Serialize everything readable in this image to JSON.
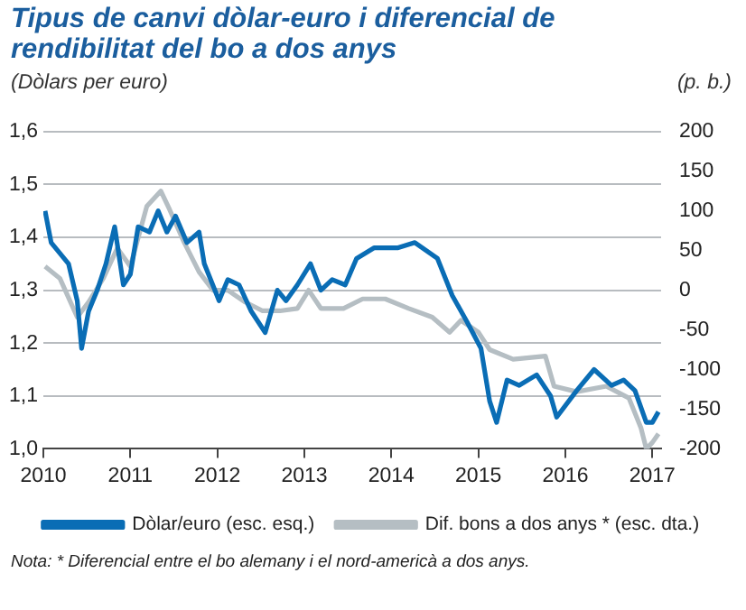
{
  "chart_data": {
    "type": "line",
    "title": "Tipus de canvi dòlar-euro i diferencial de rendibilitat del bo a dos anys",
    "ylabel": "(Dòlars per euro)",
    "y2label": "(p. b.)",
    "xlim": [
      2010,
      2017.1
    ],
    "xticks": [
      2010,
      2011,
      2012,
      2013,
      2014,
      2015,
      2016,
      2017
    ],
    "ylim": [
      1.0,
      1.6
    ],
    "yticks": [
      {
        "value": 1.0,
        "label": "1,0"
      },
      {
        "value": 1.1,
        "label": "1,1"
      },
      {
        "value": 1.2,
        "label": "1,2"
      },
      {
        "value": 1.3,
        "label": "1,3"
      },
      {
        "value": 1.4,
        "label": "1,4"
      },
      {
        "value": 1.5,
        "label": "1,5"
      },
      {
        "value": 1.6,
        "label": "1,6"
      }
    ],
    "y2lim": [
      -200,
      200
    ],
    "y2ticks": [
      -200,
      -150,
      -100,
      -50,
      0,
      50,
      100,
      150,
      200
    ],
    "grid": "y",
    "legend": "bottom",
    "marker": "none",
    "line_style": "solid",
    "series": [
      {
        "name": "Dòlar/euro (esc. esq.)",
        "color": "#0a6db5",
        "x": [
          2010.02,
          2010.09,
          2010.19,
          2010.29,
          2010.39,
          2010.44,
          2010.52,
          2010.62,
          2010.72,
          2010.82,
          2010.92,
          2011.0,
          2011.09,
          2011.22,
          2011.32,
          2011.42,
          2011.52,
          2011.65,
          2011.79,
          2011.85,
          2012.02,
          2012.12,
          2012.25,
          2012.39,
          2012.55,
          2012.69,
          2012.79,
          2012.92,
          2013.07,
          2013.19,
          2013.32,
          2013.47,
          2013.6,
          2013.8,
          2014.07,
          2014.27,
          2014.53,
          2014.7,
          2014.87,
          2015.03,
          2015.13,
          2015.21,
          2015.33,
          2015.47,
          2015.67,
          2015.83,
          2015.9,
          2016.13,
          2016.33,
          2016.53,
          2016.67,
          2016.8,
          2016.93,
          2017.0,
          2017.07
        ],
        "values": [
          1.45,
          1.39,
          1.37,
          1.35,
          1.28,
          1.19,
          1.26,
          1.3,
          1.35,
          1.42,
          1.31,
          1.33,
          1.42,
          1.41,
          1.45,
          1.41,
          1.44,
          1.39,
          1.41,
          1.35,
          1.28,
          1.32,
          1.31,
          1.26,
          1.22,
          1.3,
          1.28,
          1.31,
          1.35,
          1.3,
          1.32,
          1.31,
          1.36,
          1.38,
          1.38,
          1.39,
          1.36,
          1.29,
          1.24,
          1.19,
          1.09,
          1.05,
          1.13,
          1.12,
          1.14,
          1.1,
          1.06,
          1.11,
          1.15,
          1.12,
          1.13,
          1.11,
          1.05,
          1.05,
          1.07
        ]
      },
      {
        "name": "Dif. bons a dos anys * (esc. dta.)",
        "color": "#b5bec3",
        "axis": "y2",
        "x": [
          2010.02,
          2010.19,
          2010.39,
          2010.52,
          2010.69,
          2010.85,
          2011.0,
          2011.19,
          2011.35,
          2011.45,
          2011.62,
          2011.79,
          2011.95,
          2012.12,
          2012.32,
          2012.52,
          2012.72,
          2012.92,
          2013.05,
          2013.19,
          2013.45,
          2013.67,
          2013.93,
          2014.2,
          2014.47,
          2014.67,
          2014.8,
          2015.0,
          2015.13,
          2015.4,
          2015.77,
          2015.87,
          2016.13,
          2016.47,
          2016.73,
          2016.87,
          2016.93,
          2017.0,
          2017.07
        ],
        "values": [
          30,
          15,
          -34,
          -15,
          15,
          53,
          30,
          106,
          125,
          102,
          60,
          23,
          0,
          0,
          -15,
          -26,
          -26,
          -23,
          0,
          -23,
          -23,
          -11,
          -11,
          -23,
          -34,
          -53,
          -38,
          -53,
          -75,
          -87,
          -83,
          -121,
          -128,
          -121,
          -136,
          -174,
          -200,
          -192,
          -181
        ]
      }
    ],
    "annotations": [
      "Nota: * Diferencial entre el bo alemany i el nord-americà a dos anys."
    ]
  }
}
